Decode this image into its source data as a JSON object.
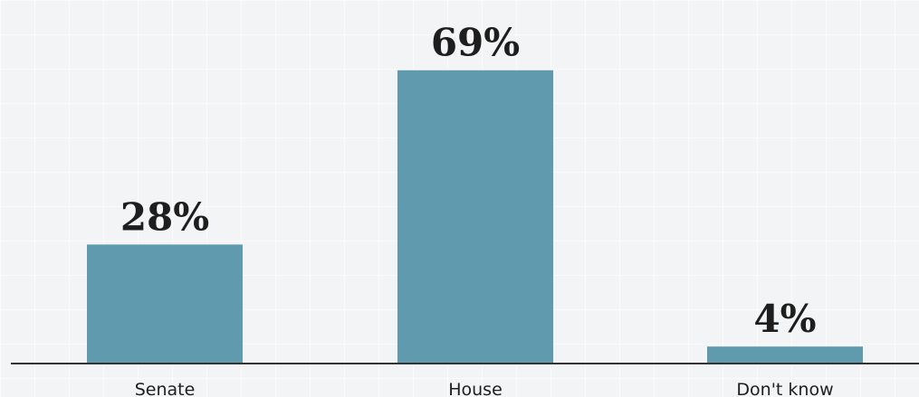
{
  "chart_data": {
    "type": "bar",
    "categories": [
      "Senate",
      "House",
      "Don't know"
    ],
    "values": [
      28,
      69,
      4
    ],
    "value_labels": [
      "28%",
      "69%",
      "4%"
    ],
    "unit": "%",
    "ylim": [
      0,
      100
    ],
    "grid": false,
    "legend": "none",
    "colors": {
      "bar": "#5f9aae",
      "baseline": "#333333",
      "text": "#1e1e1e",
      "background": "#f3f4f5"
    }
  }
}
